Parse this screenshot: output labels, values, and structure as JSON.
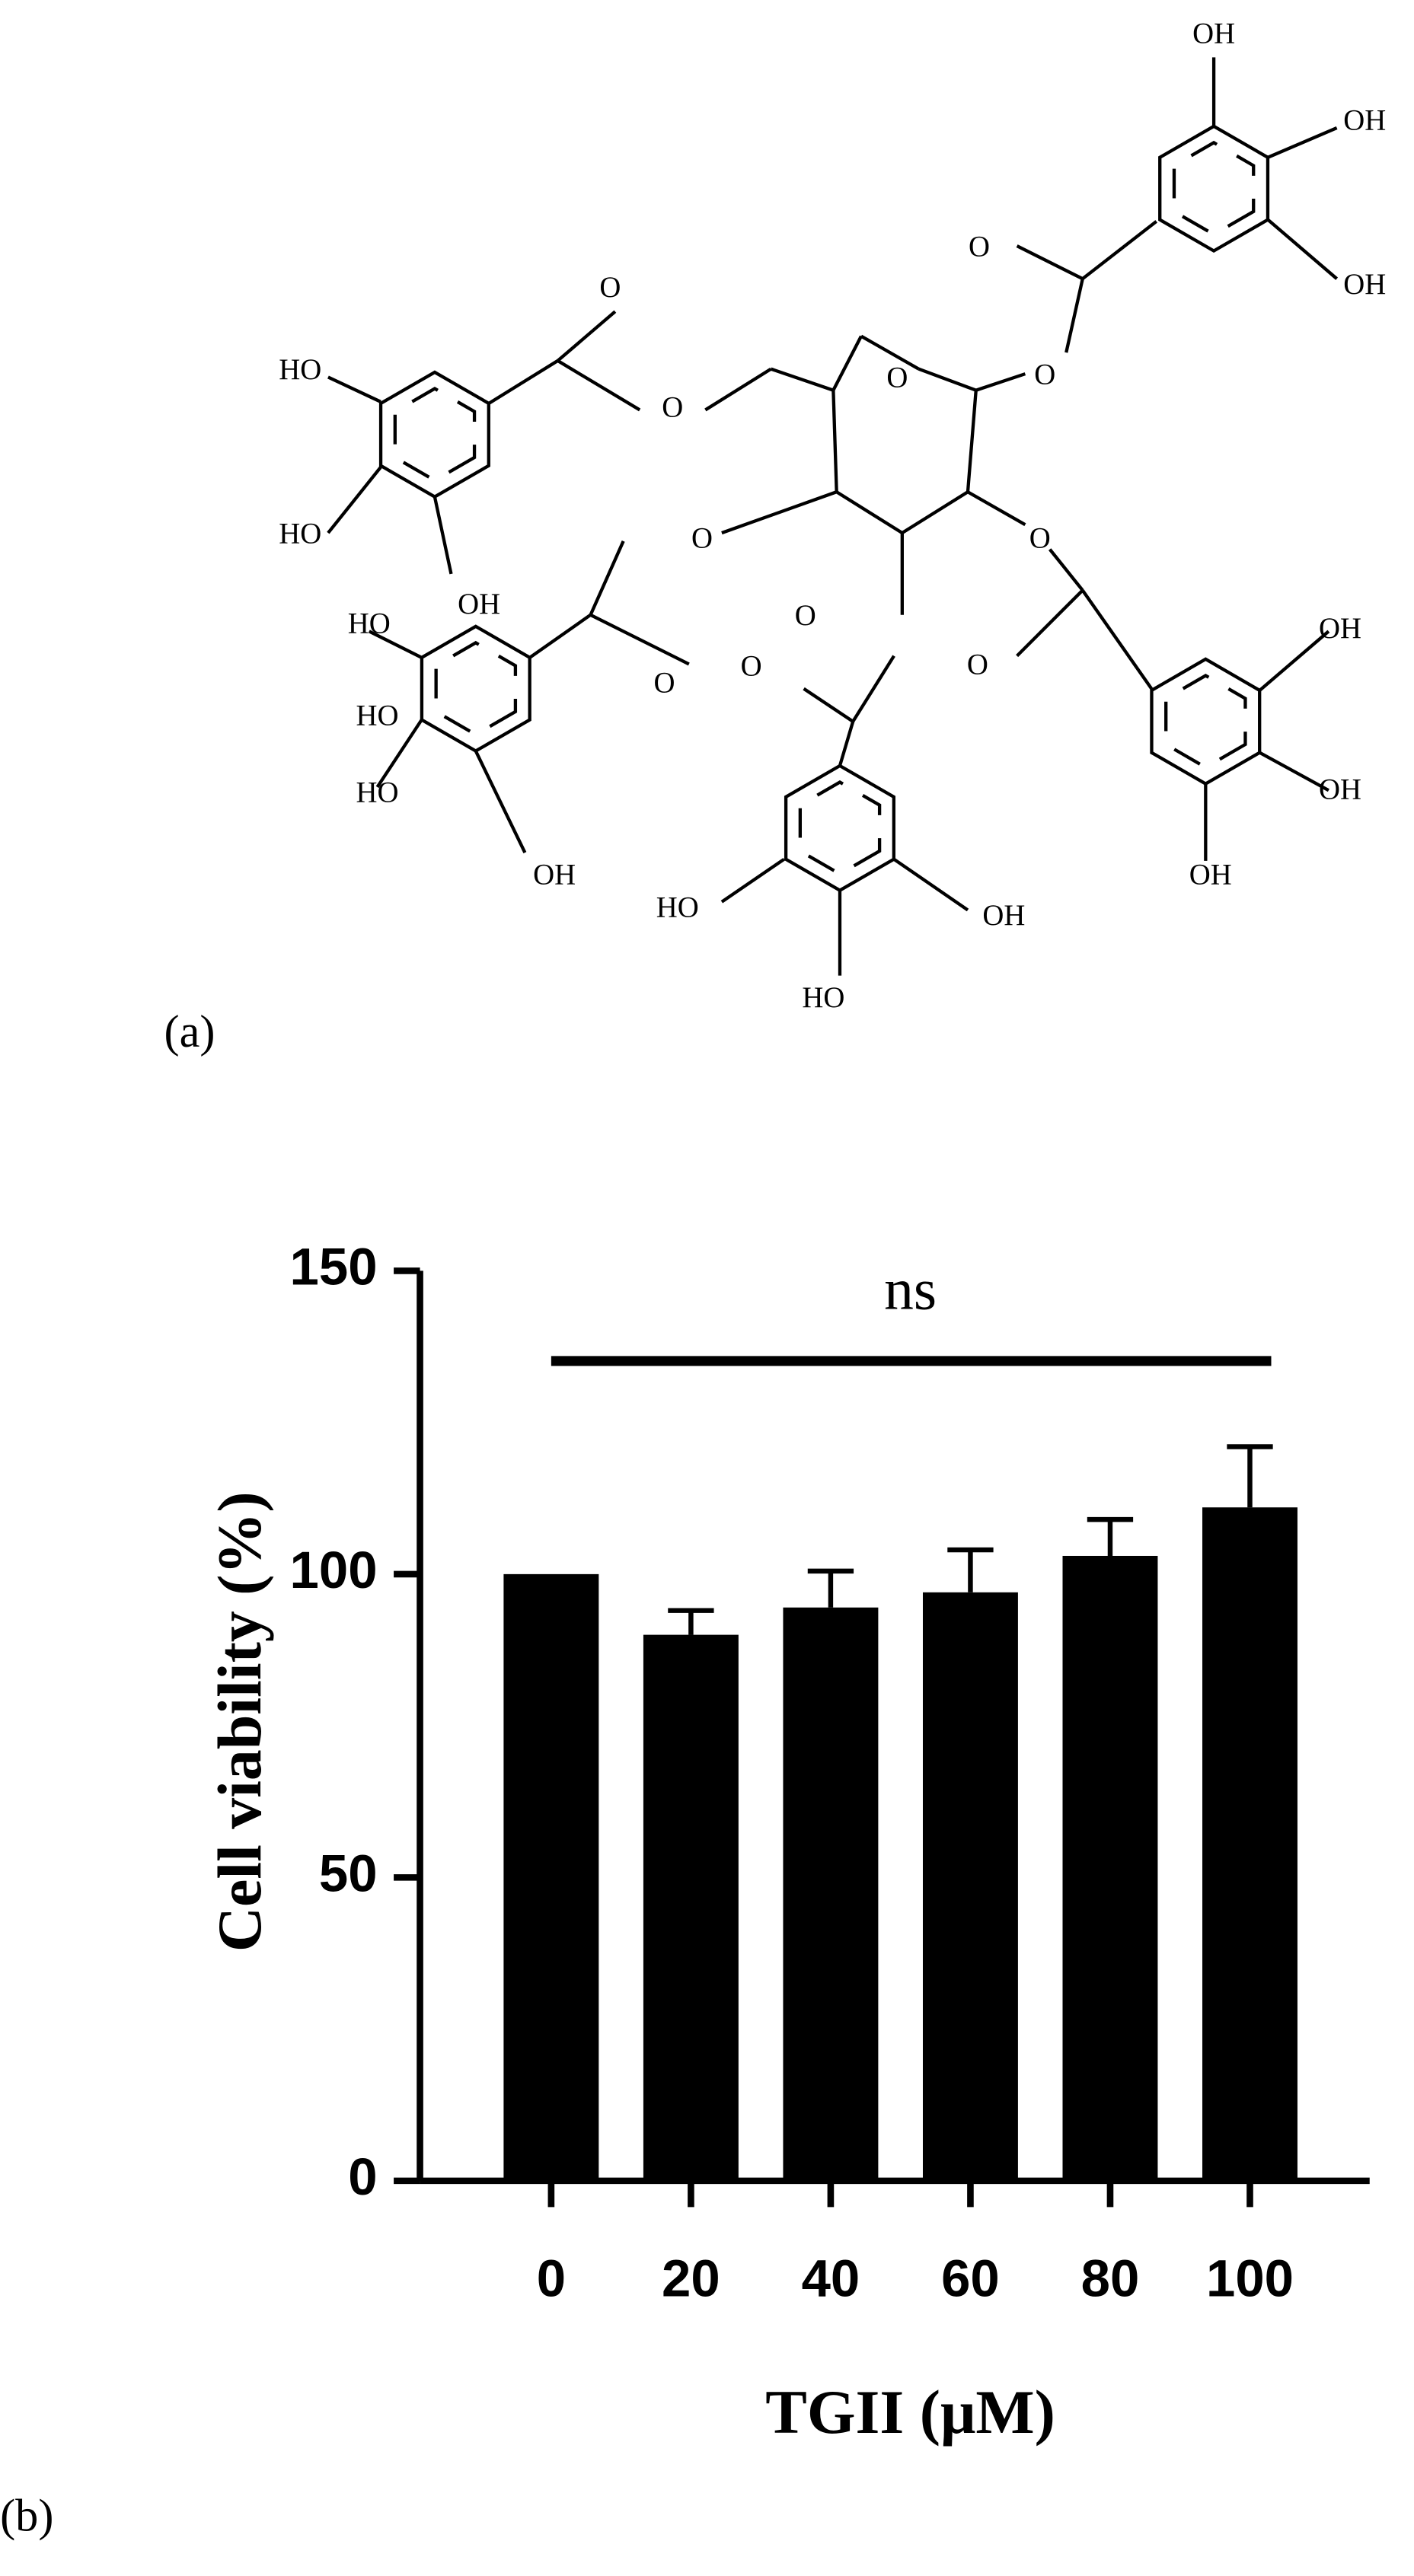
{
  "panel_labels": [
    "(a)",
    "(b)"
  ],
  "structure": {
    "labels": [
      "OH",
      "OH",
      "O",
      "OH",
      "O",
      "HO",
      "O",
      "O",
      "O",
      "HO",
      "O",
      "O",
      "OH",
      "HO",
      "O",
      "O",
      "O",
      "OH",
      "HO",
      "O",
      "HO",
      "OH",
      "OH",
      "OH",
      "HO",
      "OH",
      "HO"
    ]
  },
  "chart_data": {
    "type": "bar",
    "categories": [
      "0",
      "20",
      "40",
      "60",
      "80",
      "100"
    ],
    "values": [
      100,
      90,
      94.5,
      97,
      103,
      111
    ],
    "errors": [
      0,
      4,
      6,
      7,
      6,
      10
    ],
    "color": "#000000",
    "ylim": [
      0,
      150
    ],
    "yticks": [
      0,
      50,
      100,
      150
    ],
    "y_label": "Cell viability (%)",
    "x_label": "TGII (μM)",
    "annotation": "ns"
  }
}
